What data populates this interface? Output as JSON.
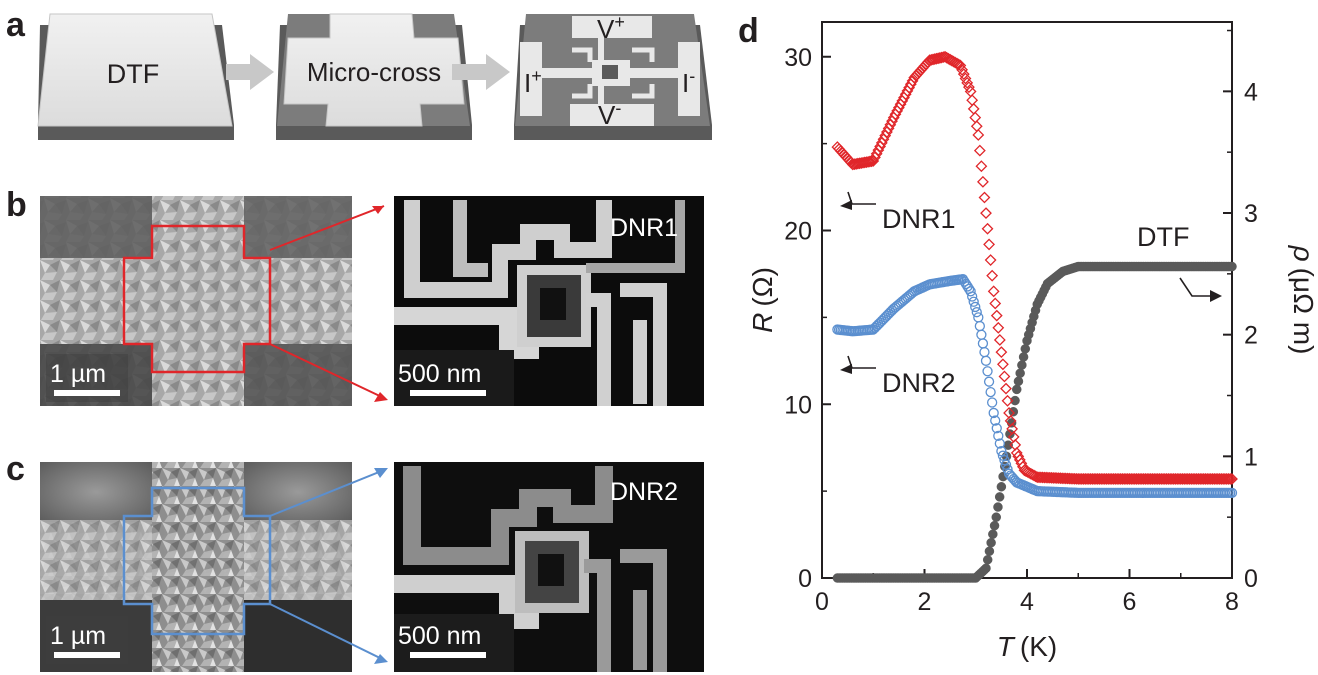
{
  "figure": {
    "panel_labels": {
      "a": "a",
      "b": "b",
      "c": "c",
      "d": "d"
    },
    "panel_a": {
      "box1": "DTF",
      "box2": "Micro-cross",
      "v_plus": "V",
      "v_plus_sup": "+",
      "v_minus": "V",
      "v_minus_sup": "-",
      "i_plus": "I",
      "i_plus_sup": "+",
      "i_minus": "I",
      "i_minus_sup": "-"
    },
    "panel_b": {
      "scale_left": "1 µm",
      "scale_right": "500 nm",
      "inset_label": "DNR1",
      "outline_color": "#e0262a"
    },
    "panel_c": {
      "scale_left": "1 µm",
      "scale_right": "500 nm",
      "inset_label": "DNR2",
      "outline_color": "#5b8fcf"
    }
  },
  "chart_data": {
    "type": "scatter",
    "xlabel": "T",
    "xlabel_unit": "(K)",
    "ylabel_left": "R",
    "ylabel_left_unit": "(Ω)",
    "ylabel_right": "ρ",
    "ylabel_right_unit": "(μΩ m)",
    "xlim": [
      0,
      8
    ],
    "ylim_left": [
      0,
      32
    ],
    "ylim_right": [
      0,
      4.57
    ],
    "x_ticks": [
      "0",
      "2",
      "4",
      "6",
      "8"
    ],
    "y_left_ticks": [
      "0",
      "10",
      "20",
      "30"
    ],
    "y_right_ticks": [
      "0",
      "1",
      "2",
      "3",
      "4"
    ],
    "colors": {
      "DNR1": "#e0262a",
      "DNR2": "#5b8fcf",
      "DTF": "#5a5a5a"
    },
    "series": [
      {
        "name": "DNR1",
        "axis": "left",
        "marker": "diamond",
        "points": [
          [
            0.3,
            24.8
          ],
          [
            0.6,
            23.8
          ],
          [
            1.0,
            24.0
          ],
          [
            1.4,
            26.5
          ],
          [
            1.8,
            28.8
          ],
          [
            2.1,
            29.8
          ],
          [
            2.4,
            30.0
          ],
          [
            2.7,
            29.5
          ],
          [
            2.9,
            28.0
          ],
          [
            3.05,
            25.5
          ],
          [
            3.2,
            21.0
          ],
          [
            3.35,
            16.5
          ],
          [
            3.5,
            13.0
          ],
          [
            3.65,
            9.5
          ],
          [
            3.8,
            7.2
          ],
          [
            3.95,
            6.2
          ],
          [
            4.2,
            5.8
          ],
          [
            5.0,
            5.7
          ],
          [
            6.0,
            5.7
          ],
          [
            7.0,
            5.7
          ],
          [
            8.0,
            5.7
          ]
        ]
      },
      {
        "name": "DNR2",
        "axis": "left",
        "marker": "circle",
        "points": [
          [
            0.3,
            14.3
          ],
          [
            0.6,
            14.2
          ],
          [
            1.0,
            14.3
          ],
          [
            1.4,
            15.5
          ],
          [
            1.8,
            16.5
          ],
          [
            2.1,
            16.9
          ],
          [
            2.5,
            17.1
          ],
          [
            2.75,
            17.2
          ],
          [
            2.9,
            16.5
          ],
          [
            3.05,
            15.0
          ],
          [
            3.2,
            12.5
          ],
          [
            3.35,
            9.5
          ],
          [
            3.5,
            7.3
          ],
          [
            3.65,
            6.0
          ],
          [
            3.8,
            5.5
          ],
          [
            4.2,
            5.0
          ],
          [
            5.0,
            4.9
          ],
          [
            6.0,
            4.9
          ],
          [
            7.0,
            4.9
          ],
          [
            8.0,
            4.9
          ]
        ]
      },
      {
        "name": "DTF",
        "axis": "right",
        "marker": "filled-circle",
        "points": [
          [
            0.3,
            0.0
          ],
          [
            1.5,
            0.0
          ],
          [
            3.0,
            0.0
          ],
          [
            3.2,
            0.08
          ],
          [
            3.4,
            0.5
          ],
          [
            3.6,
            1.0
          ],
          [
            3.8,
            1.55
          ],
          [
            4.0,
            1.95
          ],
          [
            4.2,
            2.25
          ],
          [
            4.4,
            2.42
          ],
          [
            4.7,
            2.52
          ],
          [
            5.0,
            2.56
          ],
          [
            6.0,
            2.56
          ],
          [
            7.0,
            2.56
          ],
          [
            8.0,
            2.56
          ]
        ]
      }
    ],
    "annotations": [
      "DNR1",
      "DNR2",
      "DTF"
    ]
  }
}
